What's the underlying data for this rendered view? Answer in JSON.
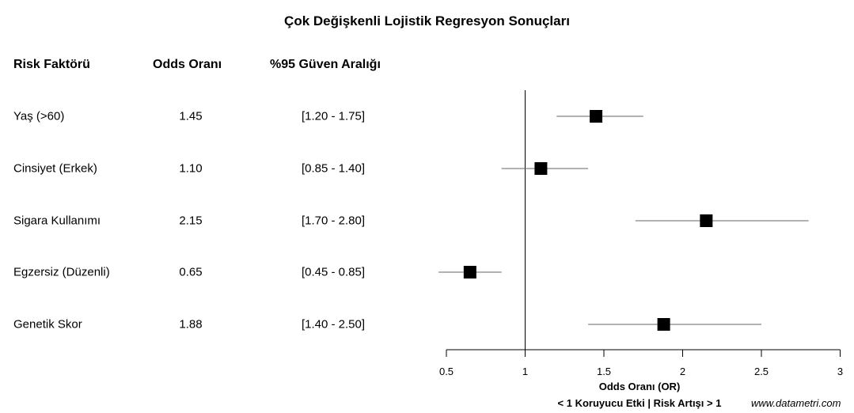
{
  "title": "Çok Değişkenli Lojistik Regresyon Sonuçları",
  "table": {
    "headers": [
      "Risk Faktörü",
      "Odds Oranı",
      "%95 Güven Aralığı"
    ],
    "rows": [
      {
        "factor": "Yaş (>60)",
        "or": "1.45",
        "ci": "[1.20 - 1.75]"
      },
      {
        "factor": "Cinsiyet (Erkek)",
        "or": "1.10",
        "ci": "[0.85 - 1.40]"
      },
      {
        "factor": "Sigara Kullanımı",
        "or": "2.15",
        "ci": "[1.70 - 2.80]"
      },
      {
        "factor": "Egzersiz (Düzenli)",
        "or": "0.65",
        "ci": "[0.45 - 0.85]"
      },
      {
        "factor": "Genetik Skor",
        "or": "1.88",
        "ci": "[1.40 - 2.50]"
      }
    ]
  },
  "axis": {
    "xlabel": "Odds Oranı (OR)",
    "note": "< 1 Koruyucu Etki  |  Risk Artışı > 1",
    "ticks": [
      "0.5",
      "1",
      "1.5",
      "2",
      "2.5",
      "3"
    ]
  },
  "credit": "www.datametri.com",
  "colors": {
    "point": "#000000",
    "ci_line": "#666666",
    "ref_line": "#000000"
  },
  "chart_data": {
    "type": "forest",
    "title": "Çok Değişkenli Lojistik Regresyon Sonuçları",
    "xlabel": "Odds Oranı (OR)",
    "xlim": [
      0.5,
      3
    ],
    "xticks": [
      0.5,
      1,
      1.5,
      2,
      2.5,
      3
    ],
    "reference_line": 1,
    "categories": [
      "Yaş (>60)",
      "Cinsiyet (Erkek)",
      "Sigara Kullanımı",
      "Egzersiz (Düzenli)",
      "Genetik Skor"
    ],
    "values": [
      1.45,
      1.1,
      2.15,
      0.65,
      1.88
    ],
    "ci_lower": [
      1.2,
      0.85,
      1.7,
      0.45,
      1.4
    ],
    "ci_upper": [
      1.75,
      1.4,
      2.8,
      0.85,
      2.5
    ],
    "annotation": "< 1 Koruyucu Etki  |  Risk Artışı > 1"
  }
}
